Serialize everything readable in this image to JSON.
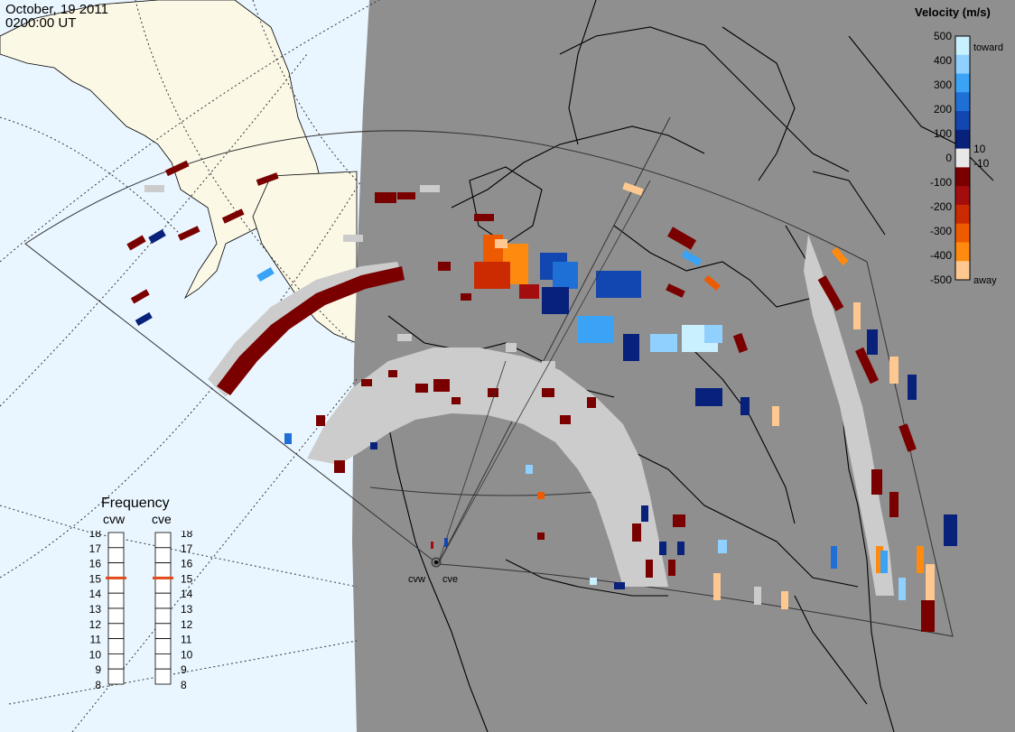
{
  "header": {
    "date": "October, 19 2011",
    "time": "0200:00 UT"
  },
  "colorbar": {
    "title": "Velocity (m/s)",
    "ticks": [
      "500",
      "400",
      "300",
      "200",
      "100",
      "0",
      "-100",
      "-200",
      "-300",
      "-400",
      "-500"
    ],
    "inner_ticks": [
      "10",
      "-10"
    ],
    "end_labels": [
      "toward",
      "away"
    ],
    "colors": [
      "#c9f0ff",
      "#8fd0ff",
      "#3aa3f5",
      "#1e6fd6",
      "#1246b0",
      "#08217a",
      "#e8e8e8",
      "#7a0000",
      "#a30d0d",
      "#cc2a00",
      "#ee5a00",
      "#ff8a10",
      "#ffc890"
    ]
  },
  "frequency": {
    "title": "Frequency",
    "radars": [
      "cvw",
      "cve"
    ],
    "scale": [
      "18",
      "17",
      "16",
      "15",
      "14",
      "13",
      "12",
      "11",
      "10",
      "9",
      "8"
    ],
    "cvw_mhz": 15,
    "cve_mhz": 15,
    "marker_color": "#e24a1c"
  },
  "sites": [
    "cvw",
    "cve"
  ],
  "map_colors": {
    "ocean_night": "#8f8f8f",
    "ocean_day": "#eaf6ff",
    "land_day": "#fbf8e6",
    "scatter_ground": "#cccccc"
  }
}
